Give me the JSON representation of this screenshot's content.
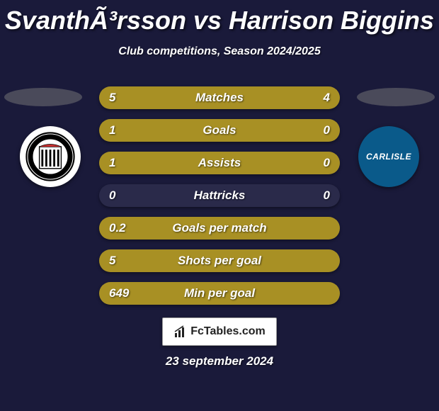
{
  "title": "SvanthÃ³rsson vs Harrison Biggins",
  "subtitle": "Club competitions, Season 2024/2025",
  "date": "23 september 2024",
  "logo_text": "FcTables.com",
  "colors": {
    "background": "#1a1a3a",
    "bar_fill": "#a89024",
    "bar_empty": "#2a2a4a",
    "ellipse": "#4a4a5a",
    "badge_left_bg": "#ffffff",
    "badge_right_bg": "#0a5a8a"
  },
  "badge_left": {
    "label": "Grimsby Town FC"
  },
  "badge_right": {
    "label": "CARLISLE"
  },
  "stats": [
    {
      "label": "Matches",
      "left_val": "5",
      "right_val": "4",
      "left_pct": 55.6,
      "right_pct": 44.4
    },
    {
      "label": "Goals",
      "left_val": "1",
      "right_val": "0",
      "left_pct": 77,
      "right_pct": 23
    },
    {
      "label": "Assists",
      "left_val": "1",
      "right_val": "0",
      "left_pct": 77,
      "right_pct": 23
    },
    {
      "label": "Hattricks",
      "left_val": "0",
      "right_val": "0",
      "left_pct": 0,
      "right_pct": 0
    },
    {
      "label": "Goals per match",
      "left_val": "0.2",
      "right_val": "",
      "left_pct": 100,
      "right_pct": 0
    },
    {
      "label": "Shots per goal",
      "left_val": "5",
      "right_val": "",
      "left_pct": 100,
      "right_pct": 0
    },
    {
      "label": "Min per goal",
      "left_val": "649",
      "right_val": "",
      "left_pct": 100,
      "right_pct": 0
    }
  ]
}
